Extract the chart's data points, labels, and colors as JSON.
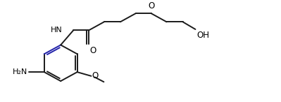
{
  "bg_color": "#ffffff",
  "line_color": "#1a1a1a",
  "bond_color_dark": "#2222aa",
  "label_color": "#000000",
  "line_width": 1.4,
  "figsize": [
    3.99,
    1.46
  ],
  "dpi": 100,
  "xlim": [
    0,
    10
  ],
  "ylim": [
    0,
    3.65
  ]
}
